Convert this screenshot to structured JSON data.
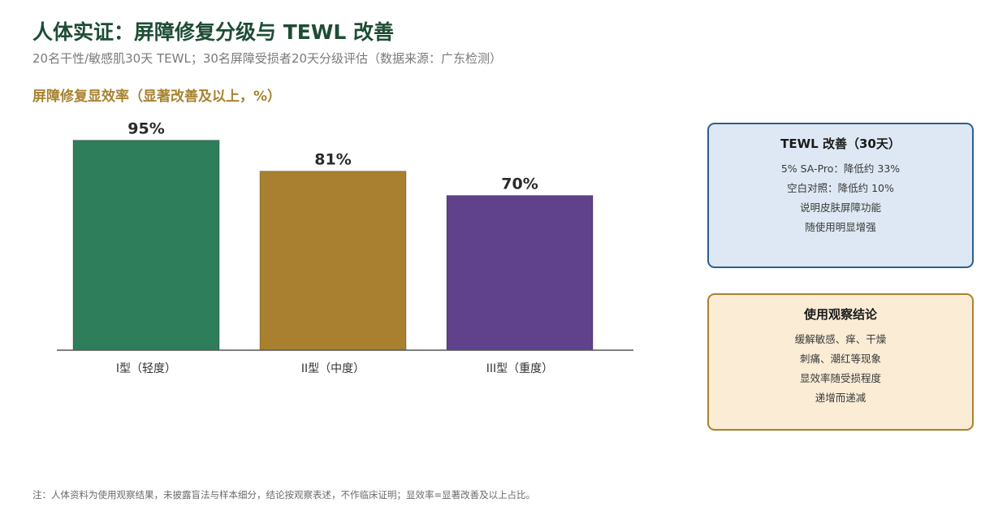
{
  "header": {
    "title": "人体实证：屏障修复分级与 TEWL 改善",
    "subtitle": "20名干性/敏感肌30天 TEWL；30名屏障受损者20天分级评估（数据来源：广东检测）"
  },
  "section": {
    "title": "屏障修复显效率（显著改善及以上，%）"
  },
  "chart_data": {
    "type": "bar",
    "categories": [
      "I型（轻度）",
      "II型（中度）",
      "III型（重度）"
    ],
    "values": [
      95,
      81,
      70
    ],
    "data_labels": [
      "95%",
      "81%",
      "70%"
    ],
    "colors": [
      "#2e7d5b",
      "#a88030",
      "#5f418c"
    ],
    "axis_color": "#555555",
    "ylim": [
      0,
      100
    ],
    "grid": false,
    "legend": "none"
  },
  "cards": {
    "tewl": {
      "title": "TEWL 改善（30天）",
      "lines": [
        "5% SA-Pro：降低约 33%",
        "空白对照：降低约 10%",
        "说明皮肤屏障功能",
        "随使用明显增强"
      ]
    },
    "conclusion": {
      "title": "使用观察结论",
      "lines": [
        "缓解敏感、痒、干燥",
        "刺痛、潮红等现象",
        "显效率随受损程度",
        "递增而递减"
      ]
    }
  },
  "footnote": "注：人体资料为使用观察结果，未披露盲法与样本细分，结论按观察表述，不作临床证明；显效率=显著改善及以上占比。"
}
